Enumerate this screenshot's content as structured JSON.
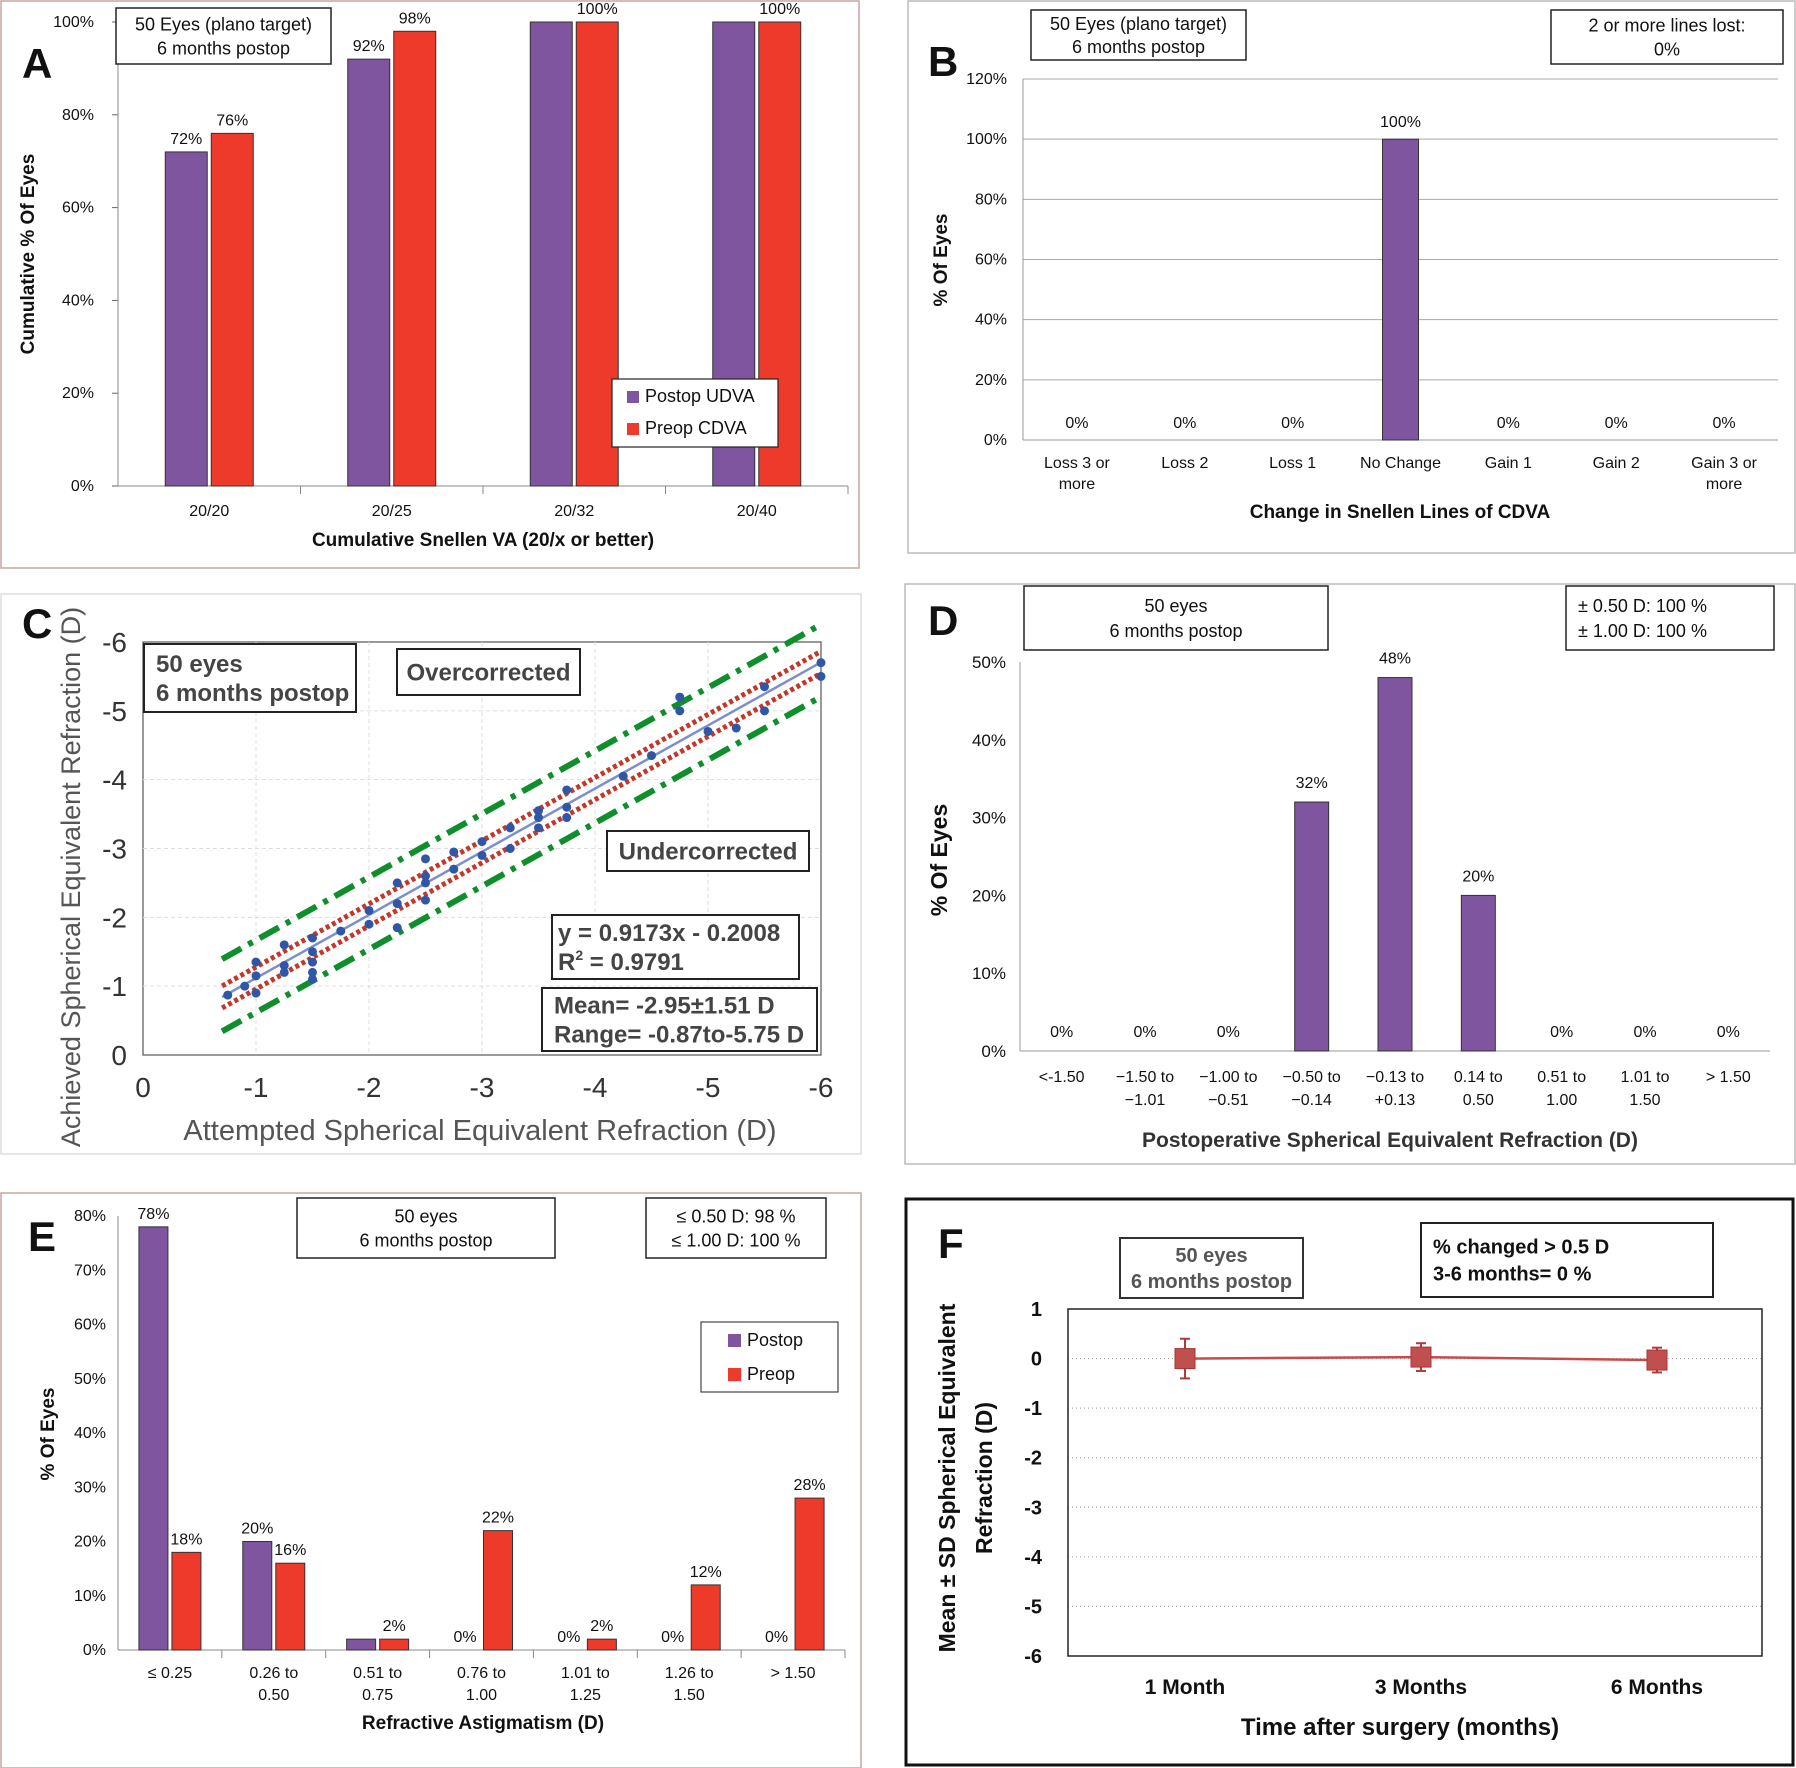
{
  "colors": {
    "purple": "#7f55a0",
    "red": "#ee3a2b",
    "green": "#0f8f2c",
    "darkred": "#c0392b",
    "blue": "#2f57a6",
    "frame": "#c8a6a0"
  },
  "chart_data": [
    {
      "panel": "A",
      "type": "bar",
      "title_box": [
        "50  Eyes (plano target)",
        "6 months postop"
      ],
      "categories": [
        "20/20",
        "20/25",
        "20/32",
        "20/40"
      ],
      "series": [
        {
          "name": "Postop UDVA",
          "values": [
            72,
            92,
            100,
            100
          ],
          "labels": [
            "72%",
            "92%",
            "",
            ""
          ]
        },
        {
          "name": "Preop CDVA",
          "values": [
            76,
            98,
            100,
            100
          ],
          "labels": [
            "76%",
            "98%",
            "100%",
            "100%"
          ]
        }
      ],
      "ylim": [
        0,
        100
      ],
      "yticks": [
        "0%",
        "20%",
        "40%",
        "60%",
        "80%",
        "100%"
      ],
      "xlabel": "Cumulative Snellen VA (20/x or better)",
      "ylabel": "Cumulative % Of Eyes",
      "legend": "bottom-right"
    },
    {
      "panel": "B",
      "type": "bar",
      "title_box": [
        "50  Eyes (plano target)",
        "6 months postop"
      ],
      "info_box": [
        "2 or more lines lost:",
        "0%"
      ],
      "categories": [
        [
          "Loss 3 or",
          "more"
        ],
        [
          "Loss 2"
        ],
        [
          "Loss 1"
        ],
        [
          "No Change"
        ],
        [
          "Gain 1"
        ],
        [
          "Gain 2"
        ],
        [
          "Gain 3 or",
          "more"
        ]
      ],
      "values": [
        0,
        0,
        0,
        100,
        0,
        0,
        0
      ],
      "labels": [
        "0%",
        "0%",
        "0%",
        "100%",
        "0%",
        "0%",
        "0%"
      ],
      "ylim": [
        0,
        120
      ],
      "yticks": [
        "0%",
        "20%",
        "40%",
        "60%",
        "80%",
        "100%",
        "120%"
      ],
      "xlabel": "Change in Snellen Lines of CDVA",
      "ylabel": "% Of Eyes"
    },
    {
      "panel": "C",
      "type": "scatter",
      "box1": [
        "50 eyes",
        "6 months postop"
      ],
      "over_label": "Overcorrected",
      "under_label": "Undercorrected",
      "equation": [
        "y = 0.9173x - 0.2008",
        "R",
        "2",
        " = 0.9791"
      ],
      "stats": [
        "Mean= -2.95±1.51 D",
        "Range= -0.87to-5.75 D"
      ],
      "xticks": [
        "0",
        "-1",
        "-2",
        "-3",
        "-4",
        "-5",
        "-6"
      ],
      "yticks": [
        "0",
        "-1",
        "-2",
        "-3",
        "-4",
        "-5",
        "-6"
      ],
      "xlim": [
        0,
        -6
      ],
      "ylim": [
        0,
        -6
      ],
      "xlabel": "Attempted Spherical Equivalent Refraction (D)",
      "ylabel": "Achieved Spherical Equivalent Refraction (D)",
      "fit": {
        "slope": 0.9173,
        "intercept": -0.2008
      },
      "points": [
        [
          -0.75,
          -0.87
        ],
        [
          -0.9,
          -1.0
        ],
        [
          -1.0,
          -1.15
        ],
        [
          -1.0,
          -1.35
        ],
        [
          -1.0,
          -0.9
        ],
        [
          -1.25,
          -1.3
        ],
        [
          -1.25,
          -1.6
        ],
        [
          -1.25,
          -1.2
        ],
        [
          -1.5,
          -1.5
        ],
        [
          -1.5,
          -1.7
        ],
        [
          -1.5,
          -1.2
        ],
        [
          -1.5,
          -1.1
        ],
        [
          -1.5,
          -1.35
        ],
        [
          -1.75,
          -1.8
        ],
        [
          -2.0,
          -1.9
        ],
        [
          -2.0,
          -2.1
        ],
        [
          -2.25,
          -2.2
        ],
        [
          -2.25,
          -1.85
        ],
        [
          -2.25,
          -2.5
        ],
        [
          -2.5,
          -2.25
        ],
        [
          -2.5,
          -2.5
        ],
        [
          -2.5,
          -2.6
        ],
        [
          -2.5,
          -2.85
        ],
        [
          -2.75,
          -2.7
        ],
        [
          -2.75,
          -2.95
        ],
        [
          -3.0,
          -2.9
        ],
        [
          -3.0,
          -3.1
        ],
        [
          -3.25,
          -3.0
        ],
        [
          -3.25,
          -3.3
        ],
        [
          -3.5,
          -3.3
        ],
        [
          -3.5,
          -3.45
        ],
        [
          -3.5,
          -3.55
        ],
        [
          -3.75,
          -3.6
        ],
        [
          -3.75,
          -3.85
        ],
        [
          -3.75,
          -3.45
        ],
        [
          -4.25,
          -4.05
        ],
        [
          -4.5,
          -4.35
        ],
        [
          -4.75,
          -5.2
        ],
        [
          -4.75,
          -5.0
        ],
        [
          -5.0,
          -4.7
        ],
        [
          -5.25,
          -4.75
        ],
        [
          -5.5,
          -5.35
        ],
        [
          -5.5,
          -5.0
        ],
        [
          -6.0,
          -5.5
        ],
        [
          -6.0,
          -5.7
        ]
      ]
    },
    {
      "panel": "D",
      "type": "bar",
      "title_box": [
        "50 eyes",
        "6 months postop"
      ],
      "info_box": [
        "± 0.50 D: 100 %",
        "± 1.00 D: 100 %"
      ],
      "categories": [
        [
          "<-1.50"
        ],
        [
          "−1.50  to",
          "−1.01"
        ],
        [
          "−1.00  to",
          "−0.51"
        ],
        [
          "−0.50  to",
          "−0.14"
        ],
        [
          "−0.13  to",
          "+0.13"
        ],
        [
          "0.14  to",
          "0.50"
        ],
        [
          "0.51  to",
          "1.00"
        ],
        [
          "1.01  to",
          "1.50"
        ],
        [
          "> 1.50"
        ]
      ],
      "values": [
        0,
        0,
        0,
        32,
        48,
        20,
        0,
        0,
        0
      ],
      "labels": [
        "0%",
        "0%",
        "0%",
        "32%",
        "48%",
        "20%",
        "0%",
        "0%",
        "0%"
      ],
      "ylim": [
        0,
        50
      ],
      "yticks": [
        "0%",
        "10%",
        "20%",
        "30%",
        "40%",
        "50%"
      ],
      "xlabel": "Postoperative  Spherical  Equivalent  Refraction  (D)",
      "ylabel": "%  Of Eyes"
    },
    {
      "panel": "E",
      "type": "bar",
      "title_box": [
        "50 eyes",
        "6 months postop"
      ],
      "info_box": [
        "≤ 0.50 D: 98 %",
        "≤ 1.00 D: 100 %"
      ],
      "categories": [
        [
          "≤  0.25"
        ],
        [
          "0.26  to",
          "0.50"
        ],
        [
          "0.51  to",
          "0.75"
        ],
        [
          "0.76  to",
          "1.00"
        ],
        [
          "1.01  to",
          "1.25"
        ],
        [
          "1.26  to",
          "1.50"
        ],
        [
          "> 1.50"
        ]
      ],
      "series": [
        {
          "name": "Postop",
          "values": [
            78,
            20,
            2,
            0,
            0,
            0,
            0
          ],
          "labels": [
            "78%",
            "20%",
            "",
            "0%",
            "0%",
            "0%",
            "0%"
          ]
        },
        {
          "name": "Preop",
          "values": [
            18,
            16,
            2,
            22,
            2,
            12,
            28
          ],
          "labels": [
            "18%",
            "16%",
            "2%",
            "22%",
            "2%",
            "12%",
            "28%"
          ]
        }
      ],
      "ylim": [
        0,
        80
      ],
      "yticks": [
        "0%",
        "10%",
        "20%",
        "30%",
        "40%",
        "50%",
        "60%",
        "70%",
        "80%"
      ],
      "xlabel": "Refractive Astigmatism (D)",
      "ylabel": "%  Of Eyes",
      "legend": "top-right"
    },
    {
      "panel": "F",
      "type": "line",
      "title_box": [
        "50 eyes",
        "6 months postop"
      ],
      "info_box": [
        "% changed > 0.5 D",
        "3-6 months= 0 %"
      ],
      "categories": [
        "1 Month",
        "3 Months",
        "6 Months"
      ],
      "values": [
        0.0,
        0.03,
        -0.03
      ],
      "sd": [
        0.4,
        0.28,
        0.25
      ],
      "ylim": [
        -6,
        1
      ],
      "yticks": [
        "1",
        "0",
        "-1",
        "-2",
        "-3",
        "-4",
        "-5",
        "-6"
      ],
      "xlabel": "Time after surgery (months)",
      "ylabel": [
        "Mean ± SD Spherical Equivalent",
        "Refraction (D)"
      ]
    }
  ]
}
